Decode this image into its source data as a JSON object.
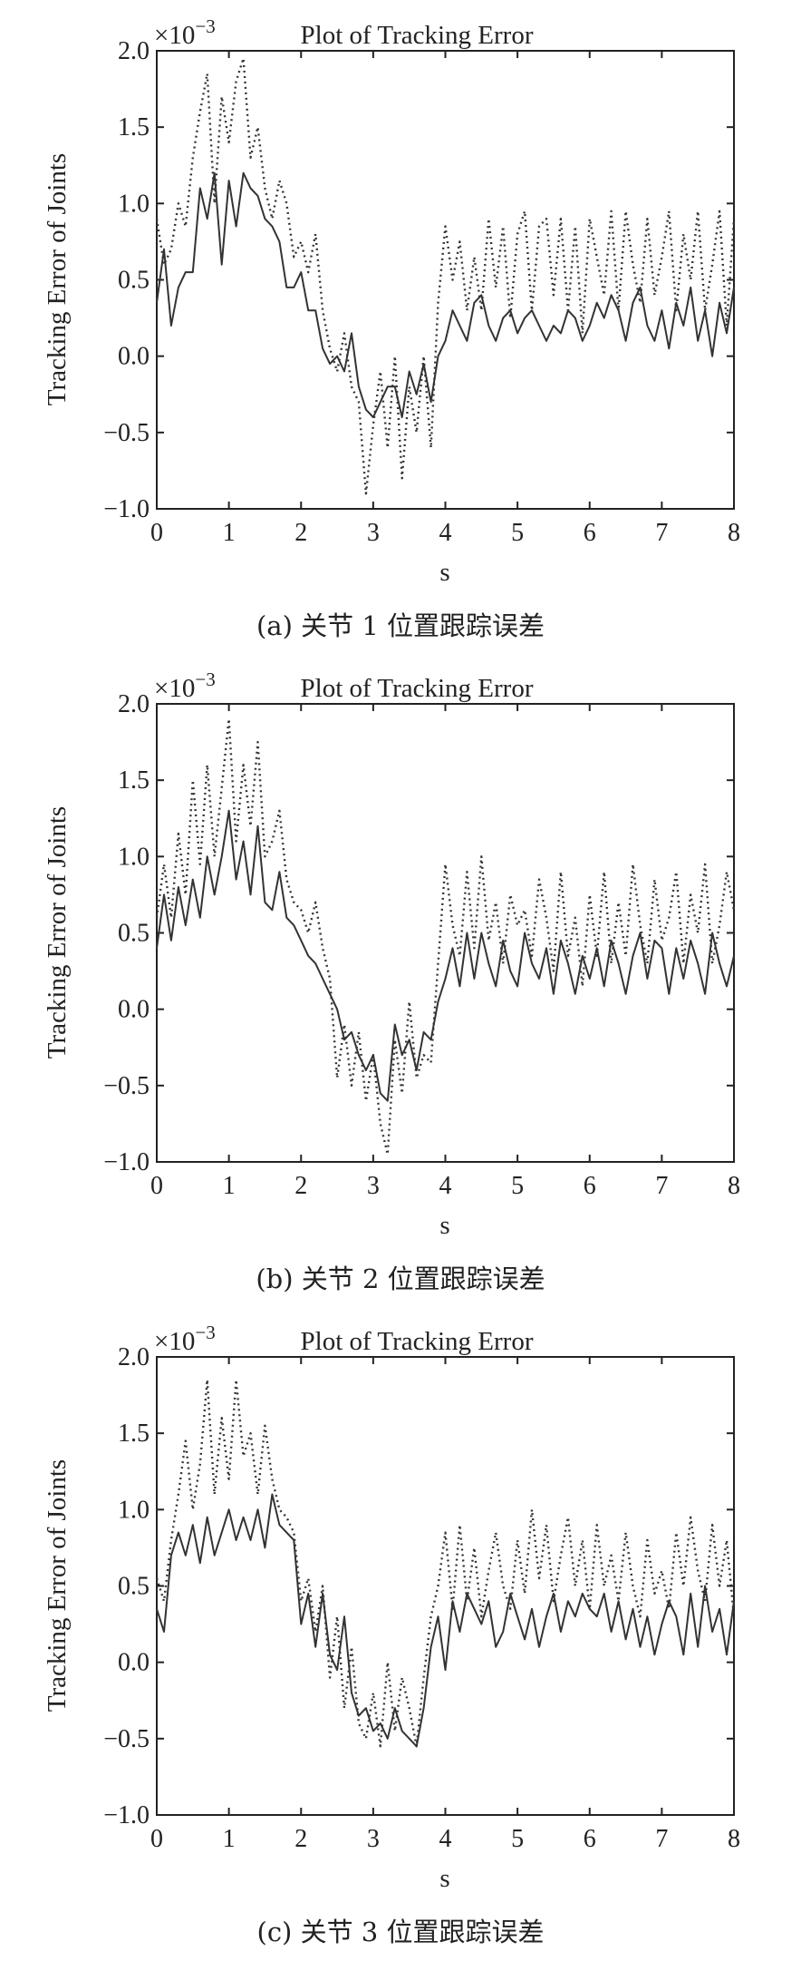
{
  "charts": [
    {
      "title": "Plot of Tracking Error",
      "multiplier_base": "×10",
      "multiplier_exp": "−3",
      "xlabel": "s",
      "ylabel": "Tracking Error of Joints",
      "caption": "(a) 关节 1 位置跟踪误差",
      "x_ticks": [
        "0",
        "1",
        "2",
        "3",
        "4",
        "5",
        "6",
        "7",
        "8"
      ],
      "y_ticks": [
        "−1.0",
        "−0.5",
        "0.0",
        "0.5",
        "1.0",
        "1.5",
        "2.0"
      ]
    },
    {
      "title": "Plot of Tracking Error",
      "multiplier_base": "×10",
      "multiplier_exp": "−3",
      "xlabel": "s",
      "ylabel": "Tracking Error of Joints",
      "caption": "(b) 关节 2 位置跟踪误差",
      "x_ticks": [
        "0",
        "1",
        "2",
        "3",
        "4",
        "5",
        "6",
        "7",
        "8"
      ],
      "y_ticks": [
        "−1.0",
        "−0.5",
        "0.0",
        "0.5",
        "1.0",
        "1.5",
        "2.0"
      ]
    },
    {
      "title": "Plot of Tracking Error",
      "multiplier_base": "×10",
      "multiplier_exp": "−3",
      "xlabel": "s",
      "ylabel": "Tracking Error of Joints",
      "caption": "(c) 关节 3 位置跟踪误差",
      "x_ticks": [
        "0",
        "1",
        "2",
        "3",
        "4",
        "5",
        "6",
        "7",
        "8"
      ],
      "y_ticks": [
        "−1.0",
        "−0.5",
        "0.0",
        "0.5",
        "1.0",
        "1.5",
        "2.0"
      ]
    }
  ],
  "chart_data": [
    {
      "type": "line",
      "title": "Plot of Tracking Error",
      "xlabel": "s",
      "ylabel": "Tracking Error of Joints",
      "xlim": [
        0,
        8
      ],
      "ylim": [
        -1.0,
        2.0
      ],
      "y_scale": "×10^-3",
      "grid": false,
      "series": [
        {
          "style": "solid",
          "x": [
            0,
            0.1,
            0.2,
            0.3,
            0.4,
            0.5,
            0.6,
            0.7,
            0.8,
            0.9,
            1.0,
            1.1,
            1.2,
            1.3,
            1.4,
            1.5,
            1.6,
            1.7,
            1.8,
            1.9,
            2.0,
            2.1,
            2.2,
            2.3,
            2.4,
            2.5,
            2.6,
            2.7,
            2.8,
            2.9,
            3.0,
            3.1,
            3.2,
            3.3,
            3.4,
            3.5,
            3.6,
            3.7,
            3.8,
            3.9,
            4.0,
            4.1,
            4.2,
            4.3,
            4.4,
            4.5,
            4.6,
            4.7,
            4.8,
            4.9,
            5.0,
            5.1,
            5.2,
            5.3,
            5.4,
            5.5,
            5.6,
            5.7,
            5.8,
            5.9,
            6.0,
            6.1,
            6.2,
            6.3,
            6.4,
            6.5,
            6.6,
            6.7,
            6.8,
            6.9,
            7.0,
            7.1,
            7.2,
            7.3,
            7.4,
            7.5,
            7.6,
            7.7,
            7.8,
            7.9,
            8.0
          ],
          "values": [
            0.35,
            0.7,
            0.2,
            0.45,
            0.55,
            0.55,
            1.1,
            0.9,
            1.2,
            0.6,
            1.15,
            0.85,
            1.2,
            1.1,
            1.05,
            0.9,
            0.85,
            0.75,
            0.45,
            0.45,
            0.55,
            0.3,
            0.3,
            0.05,
            -0.05,
            0.0,
            -0.1,
            0.15,
            -0.2,
            -0.35,
            -0.4,
            -0.3,
            -0.2,
            -0.2,
            -0.4,
            -0.1,
            -0.25,
            -0.05,
            -0.3,
            0.0,
            0.1,
            0.3,
            0.2,
            0.1,
            0.35,
            0.4,
            0.2,
            0.1,
            0.25,
            0.3,
            0.15,
            0.25,
            0.3,
            0.2,
            0.1,
            0.2,
            0.15,
            0.3,
            0.25,
            0.1,
            0.2,
            0.35,
            0.25,
            0.4,
            0.3,
            0.1,
            0.35,
            0.45,
            0.2,
            0.1,
            0.3,
            0.05,
            0.35,
            0.2,
            0.45,
            0.1,
            0.3,
            0.0,
            0.35,
            0.15,
            0.45
          ]
        },
        {
          "style": "dotted",
          "x": [
            0,
            0.1,
            0.2,
            0.3,
            0.4,
            0.5,
            0.6,
            0.7,
            0.8,
            0.9,
            1.0,
            1.1,
            1.2,
            1.3,
            1.4,
            1.5,
            1.6,
            1.7,
            1.8,
            1.9,
            2.0,
            2.1,
            2.2,
            2.3,
            2.4,
            2.5,
            2.6,
            2.7,
            2.8,
            2.9,
            3.0,
            3.1,
            3.2,
            3.3,
            3.4,
            3.5,
            3.6,
            3.7,
            3.8,
            3.9,
            4.0,
            4.1,
            4.2,
            4.3,
            4.4,
            4.5,
            4.6,
            4.7,
            4.8,
            4.9,
            5.0,
            5.1,
            5.2,
            5.3,
            5.4,
            5.5,
            5.6,
            5.7,
            5.8,
            5.9,
            6.0,
            6.1,
            6.2,
            6.3,
            6.4,
            6.5,
            6.6,
            6.7,
            6.8,
            6.9,
            7.0,
            7.1,
            7.2,
            7.3,
            7.4,
            7.5,
            7.6,
            7.7,
            7.8,
            7.9,
            8.0
          ],
          "values": [
            0.9,
            0.6,
            0.7,
            1.0,
            0.85,
            1.3,
            1.6,
            1.85,
            1.0,
            1.7,
            1.4,
            1.8,
            1.95,
            1.3,
            1.5,
            1.1,
            0.9,
            1.15,
            1.0,
            0.65,
            0.75,
            0.55,
            0.8,
            0.3,
            0.05,
            -0.1,
            0.15,
            -0.2,
            -0.3,
            -0.9,
            -0.45,
            -0.1,
            -0.6,
            0.0,
            -0.8,
            -0.2,
            -0.5,
            0.0,
            -0.6,
            0.35,
            0.85,
            0.5,
            0.75,
            0.3,
            0.65,
            0.3,
            0.9,
            0.45,
            0.85,
            0.25,
            0.8,
            0.95,
            0.3,
            0.85,
            0.9,
            0.4,
            0.9,
            0.3,
            0.85,
            0.15,
            0.9,
            0.65,
            0.4,
            0.95,
            0.3,
            0.95,
            0.6,
            0.35,
            0.9,
            0.4,
            0.65,
            0.95,
            0.3,
            0.8,
            0.5,
            0.95,
            0.3,
            0.6,
            0.95,
            0.2,
            0.9
          ]
        }
      ]
    },
    {
      "type": "line",
      "title": "Plot of Tracking Error",
      "xlabel": "s",
      "ylabel": "Tracking Error of Joints",
      "xlim": [
        0,
        8
      ],
      "ylim": [
        -1.0,
        2.0
      ],
      "y_scale": "×10^-3",
      "grid": false,
      "series": [
        {
          "style": "solid",
          "x": [
            0,
            0.1,
            0.2,
            0.3,
            0.4,
            0.5,
            0.6,
            0.7,
            0.8,
            0.9,
            1.0,
            1.1,
            1.2,
            1.3,
            1.4,
            1.5,
            1.6,
            1.7,
            1.8,
            1.9,
            2.0,
            2.1,
            2.2,
            2.3,
            2.4,
            2.5,
            2.6,
            2.7,
            2.8,
            2.9,
            3.0,
            3.1,
            3.2,
            3.3,
            3.4,
            3.5,
            3.6,
            3.7,
            3.8,
            3.9,
            4.0,
            4.1,
            4.2,
            4.3,
            4.4,
            4.5,
            4.6,
            4.7,
            4.8,
            4.9,
            5.0,
            5.1,
            5.2,
            5.3,
            5.4,
            5.5,
            5.6,
            5.7,
            5.8,
            5.9,
            6.0,
            6.1,
            6.2,
            6.3,
            6.4,
            6.5,
            6.6,
            6.7,
            6.8,
            6.9,
            7.0,
            7.1,
            7.2,
            7.3,
            7.4,
            7.5,
            7.6,
            7.7,
            7.8,
            7.9,
            8.0
          ],
          "values": [
            0.4,
            0.75,
            0.45,
            0.8,
            0.55,
            0.85,
            0.6,
            1.0,
            0.75,
            1.0,
            1.3,
            0.85,
            1.1,
            0.75,
            1.2,
            0.7,
            0.65,
            0.9,
            0.6,
            0.55,
            0.45,
            0.35,
            0.3,
            0.2,
            0.1,
            0.0,
            -0.2,
            -0.15,
            -0.3,
            -0.4,
            -0.3,
            -0.55,
            -0.6,
            -0.1,
            -0.3,
            -0.2,
            -0.4,
            -0.15,
            -0.2,
            0.05,
            0.2,
            0.4,
            0.15,
            0.5,
            0.2,
            0.5,
            0.3,
            0.15,
            0.45,
            0.25,
            0.15,
            0.5,
            0.3,
            0.2,
            0.4,
            0.1,
            0.45,
            0.3,
            0.1,
            0.35,
            0.2,
            0.4,
            0.15,
            0.45,
            0.3,
            0.1,
            0.35,
            0.5,
            0.2,
            0.45,
            0.4,
            0.1,
            0.4,
            0.2,
            0.45,
            0.3,
            0.1,
            0.5,
            0.3,
            0.15,
            0.35
          ]
        },
        {
          "style": "dotted",
          "x": [
            0,
            0.1,
            0.2,
            0.3,
            0.4,
            0.5,
            0.6,
            0.7,
            0.8,
            0.9,
            1.0,
            1.1,
            1.2,
            1.3,
            1.4,
            1.5,
            1.6,
            1.7,
            1.8,
            1.9,
            2.0,
            2.1,
            2.2,
            2.3,
            2.4,
            2.5,
            2.6,
            2.7,
            2.8,
            2.9,
            3.0,
            3.1,
            3.2,
            3.3,
            3.4,
            3.5,
            3.6,
            3.7,
            3.8,
            3.9,
            4.0,
            4.1,
            4.2,
            4.3,
            4.4,
            4.5,
            4.6,
            4.7,
            4.8,
            4.9,
            5.0,
            5.1,
            5.2,
            5.3,
            5.4,
            5.5,
            5.6,
            5.7,
            5.8,
            5.9,
            6.0,
            6.1,
            6.2,
            6.3,
            6.4,
            6.5,
            6.6,
            6.7,
            6.8,
            6.9,
            7.0,
            7.1,
            7.2,
            7.3,
            7.4,
            7.5,
            7.6,
            7.7,
            7.8,
            7.9,
            8.0
          ],
          "values": [
            0.6,
            0.95,
            0.6,
            1.15,
            0.75,
            1.5,
            0.95,
            1.6,
            1.0,
            1.45,
            1.9,
            1.1,
            1.6,
            1.2,
            1.75,
            1.0,
            1.1,
            1.3,
            0.85,
            0.7,
            0.65,
            0.5,
            0.7,
            0.4,
            0.2,
            -0.45,
            -0.1,
            -0.5,
            -0.15,
            -0.6,
            -0.3,
            -0.75,
            -0.95,
            -0.2,
            -0.55,
            0.05,
            -0.45,
            -0.3,
            -0.35,
            0.3,
            0.95,
            0.55,
            0.35,
            0.9,
            0.4,
            1.0,
            0.45,
            0.7,
            0.3,
            0.75,
            0.55,
            0.65,
            0.35,
            0.85,
            0.6,
            0.25,
            0.9,
            0.35,
            0.6,
            0.15,
            0.75,
            0.35,
            0.9,
            0.3,
            0.7,
            0.35,
            0.95,
            0.55,
            0.3,
            0.85,
            0.45,
            0.6,
            0.9,
            0.3,
            0.75,
            0.5,
            0.95,
            0.3,
            0.55,
            0.9,
            0.65
          ]
        }
      ]
    },
    {
      "type": "line",
      "title": "Plot of Tracking Error",
      "xlabel": "s",
      "ylabel": "Tracking Error of Joints",
      "xlim": [
        0,
        8
      ],
      "ylim": [
        -1.0,
        2.0
      ],
      "y_scale": "×10^-3",
      "grid": false,
      "series": [
        {
          "style": "solid",
          "x": [
            0,
            0.1,
            0.2,
            0.3,
            0.4,
            0.5,
            0.6,
            0.7,
            0.8,
            0.9,
            1.0,
            1.1,
            1.2,
            1.3,
            1.4,
            1.5,
            1.6,
            1.7,
            1.8,
            1.9,
            2.0,
            2.1,
            2.2,
            2.3,
            2.4,
            2.5,
            2.6,
            2.7,
            2.8,
            2.9,
            3.0,
            3.1,
            3.2,
            3.3,
            3.4,
            3.5,
            3.6,
            3.7,
            3.8,
            3.9,
            4.0,
            4.1,
            4.2,
            4.3,
            4.4,
            4.5,
            4.6,
            4.7,
            4.8,
            4.9,
            5.0,
            5.1,
            5.2,
            5.3,
            5.4,
            5.5,
            5.6,
            5.7,
            5.8,
            5.9,
            6.0,
            6.1,
            6.2,
            6.3,
            6.4,
            6.5,
            6.6,
            6.7,
            6.8,
            6.9,
            7.0,
            7.1,
            7.2,
            7.3,
            7.4,
            7.5,
            7.6,
            7.7,
            7.8,
            7.9,
            8.0
          ],
          "values": [
            0.35,
            0.2,
            0.7,
            0.85,
            0.7,
            0.9,
            0.65,
            0.95,
            0.7,
            0.85,
            1.0,
            0.8,
            0.95,
            0.8,
            1.0,
            0.75,
            1.1,
            0.9,
            0.85,
            0.8,
            0.25,
            0.45,
            0.1,
            0.45,
            0.05,
            -0.05,
            0.3,
            -0.2,
            -0.35,
            -0.3,
            -0.45,
            -0.4,
            -0.5,
            -0.3,
            -0.45,
            -0.5,
            -0.55,
            -0.3,
            0.1,
            0.3,
            -0.05,
            0.4,
            0.2,
            0.45,
            0.35,
            0.25,
            0.4,
            0.1,
            0.2,
            0.45,
            0.3,
            0.15,
            0.35,
            0.1,
            0.3,
            0.45,
            0.2,
            0.4,
            0.3,
            0.45,
            0.35,
            0.3,
            0.45,
            0.2,
            0.4,
            0.15,
            0.35,
            0.1,
            0.3,
            0.05,
            0.25,
            0.4,
            0.3,
            0.05,
            0.45,
            0.1,
            0.5,
            0.2,
            0.35,
            0.05,
            0.4
          ]
        },
        {
          "style": "dotted",
          "x": [
            0,
            0.1,
            0.2,
            0.3,
            0.4,
            0.5,
            0.6,
            0.7,
            0.8,
            0.9,
            1.0,
            1.1,
            1.2,
            1.3,
            1.4,
            1.5,
            1.6,
            1.7,
            1.8,
            1.9,
            2.0,
            2.1,
            2.2,
            2.3,
            2.4,
            2.5,
            2.6,
            2.7,
            2.8,
            2.9,
            3.0,
            3.1,
            3.2,
            3.3,
            3.4,
            3.5,
            3.6,
            3.7,
            3.8,
            3.9,
            4.0,
            4.1,
            4.2,
            4.3,
            4.4,
            4.5,
            4.6,
            4.7,
            4.8,
            4.9,
            5.0,
            5.1,
            5.2,
            5.3,
            5.4,
            5.5,
            5.6,
            5.7,
            5.8,
            5.9,
            6.0,
            6.1,
            6.2,
            6.3,
            6.4,
            6.5,
            6.6,
            6.7,
            6.8,
            6.9,
            7.0,
            7.1,
            7.2,
            7.3,
            7.4,
            7.5,
            7.6,
            7.7,
            7.8,
            7.9,
            8.0
          ],
          "values": [
            0.55,
            0.4,
            0.8,
            1.1,
            1.45,
            1.0,
            1.3,
            1.85,
            1.1,
            1.6,
            1.2,
            1.85,
            1.35,
            1.5,
            1.1,
            1.55,
            1.2,
            1.0,
            0.95,
            0.85,
            0.4,
            0.55,
            0.2,
            0.5,
            -0.1,
            0.3,
            -0.3,
            0.1,
            -0.4,
            -0.5,
            -0.2,
            -0.55,
            0.0,
            -0.45,
            -0.1,
            -0.3,
            -0.55,
            -0.1,
            0.3,
            0.5,
            0.85,
            0.35,
            0.9,
            0.4,
            0.75,
            0.3,
            0.6,
            0.85,
            0.5,
            0.35,
            0.8,
            0.45,
            1.0,
            0.55,
            0.9,
            0.4,
            0.7,
            0.95,
            0.5,
            0.8,
            0.35,
            0.9,
            0.5,
            0.7,
            0.4,
            0.85,
            0.5,
            0.3,
            0.8,
            0.45,
            0.6,
            0.35,
            0.85,
            0.5,
            0.95,
            0.6,
            0.4,
            0.9,
            0.5,
            0.8,
            0.3
          ]
        }
      ]
    }
  ]
}
